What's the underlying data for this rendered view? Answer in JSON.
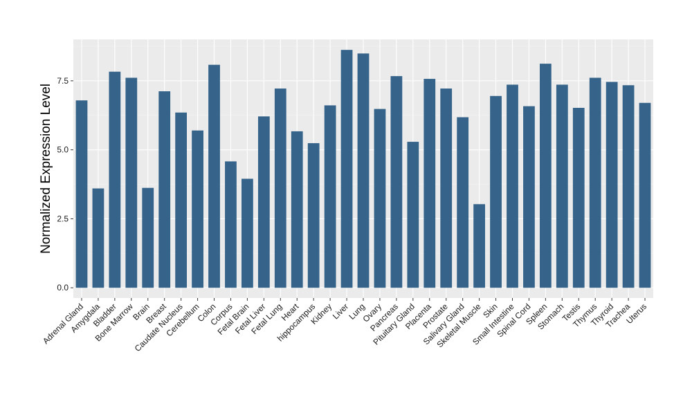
{
  "chart_data": {
    "type": "bar",
    "title": "",
    "xlabel": "",
    "ylabel": "Normalized Expression Level",
    "ylim": [
      -0.37,
      9.0
    ],
    "yticks": [
      0.0,
      2.5,
      5.0,
      7.5
    ],
    "ytick_labels": [
      "0.0",
      "2.5",
      "5.0",
      "7.5"
    ],
    "grid": true,
    "legend": "none",
    "categories": [
      "Adrenal Gland",
      "Amygdala",
      "Bladder",
      "Bone Marrow",
      "Brain",
      "Breast",
      "Caudate Nucleus",
      "Cerebellum",
      "Colon",
      "Corpus",
      "Fetal Brain",
      "Fetal Liver",
      "Fetal Lung",
      "Heart",
      "hippocampus",
      "Kidney",
      "Liver",
      "Lung",
      "Ovary",
      "Pancreas",
      "Pituitary Gland",
      "Placenta",
      "Prostate",
      "Salivary Gland",
      "Skeletal Muscle",
      "Skin",
      "Small Intestine",
      "Spinal Cord",
      "Spleen",
      "Stomach",
      "Testis",
      "Thymus",
      "Thyroid",
      "Trachea",
      "Uterus"
    ],
    "values": [
      6.79,
      3.6,
      7.83,
      7.61,
      3.62,
      7.12,
      6.35,
      5.7,
      8.08,
      4.58,
      3.95,
      6.21,
      7.22,
      5.67,
      5.24,
      6.61,
      8.62,
      8.49,
      6.48,
      7.67,
      5.29,
      7.57,
      7.22,
      6.18,
      3.03,
      6.95,
      7.36,
      6.58,
      8.12,
      7.36,
      6.52,
      7.61,
      7.46,
      7.34,
      6.7
    ]
  },
  "colors": {
    "bar": "#35638a",
    "panel_background": "#ebebeb",
    "grid_major": "#ffffff",
    "grid_minor": "#f4f4f4",
    "tick_color": "#333333"
  }
}
